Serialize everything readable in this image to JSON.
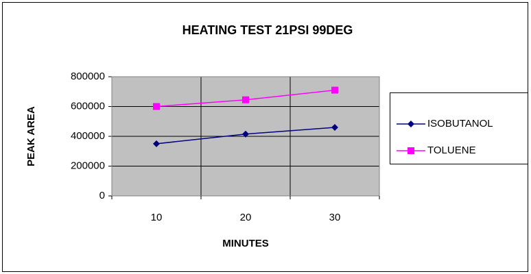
{
  "chart_data": {
    "type": "line",
    "title": "HEATING TEST 21PSI 99DEG",
    "x_label": "MINUTES",
    "y_label": "PEAK AREA",
    "categories": [
      "10",
      "20",
      "30"
    ],
    "series": [
      {
        "name": "ISOBUTANOL",
        "color": "#000080",
        "marker": "diamond",
        "values": [
          350000,
          415000,
          460000
        ]
      },
      {
        "name": "TOLUENE",
        "color": "#ff00ff",
        "marker": "square",
        "values": [
          600000,
          645000,
          710000
        ]
      }
    ],
    "ylim": [
      0,
      800000
    ],
    "yticks": [
      0,
      200000,
      400000,
      600000,
      800000
    ],
    "grid": true,
    "legend": "right"
  }
}
